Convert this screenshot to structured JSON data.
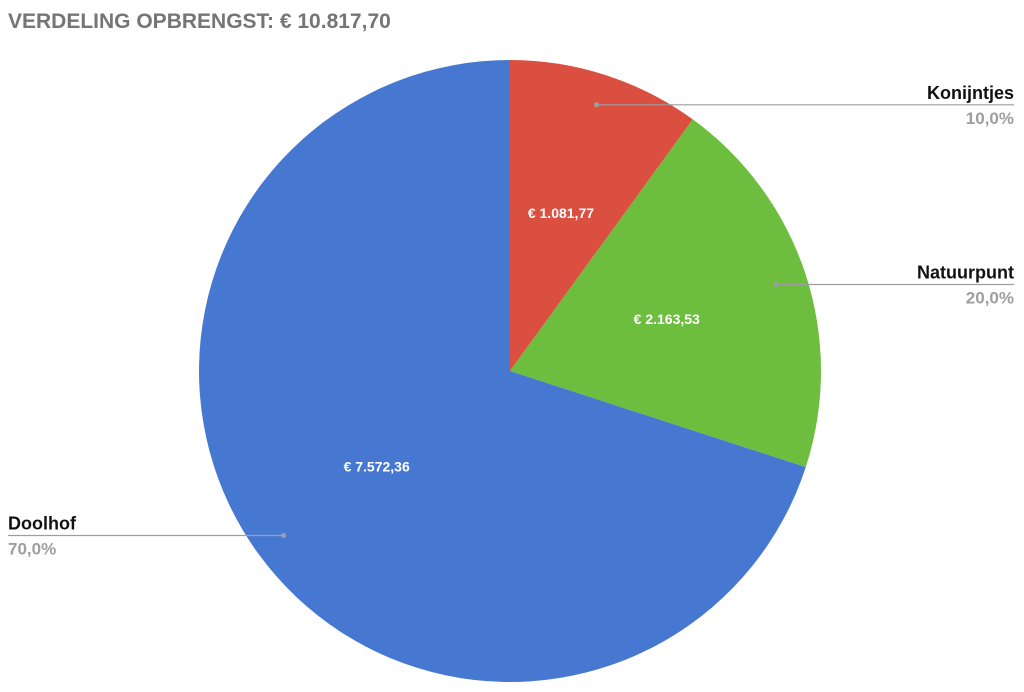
{
  "chart_data": {
    "type": "pie",
    "title": "VERDELING OPBRENGST: € 10.817,70",
    "start_angle_deg": 0,
    "direction": "clockwise",
    "slices": [
      {
        "name": "Konijntjes",
        "value": 1081.77,
        "value_label": "€ 1.081,77",
        "percent_label": "10,0%",
        "color": "#db4f40"
      },
      {
        "name": "Natuurpunt",
        "value": 2163.53,
        "value_label": "€ 2.163,53",
        "percent_label": "20,0%",
        "color": "#6dbe3f"
      },
      {
        "name": "Doolhof",
        "value": 7572.36,
        "value_label": "€ 7.572,36",
        "percent_label": "70,0%",
        "color": "#4778d1"
      }
    ],
    "legend": "labels-with-leader-lines"
  }
}
